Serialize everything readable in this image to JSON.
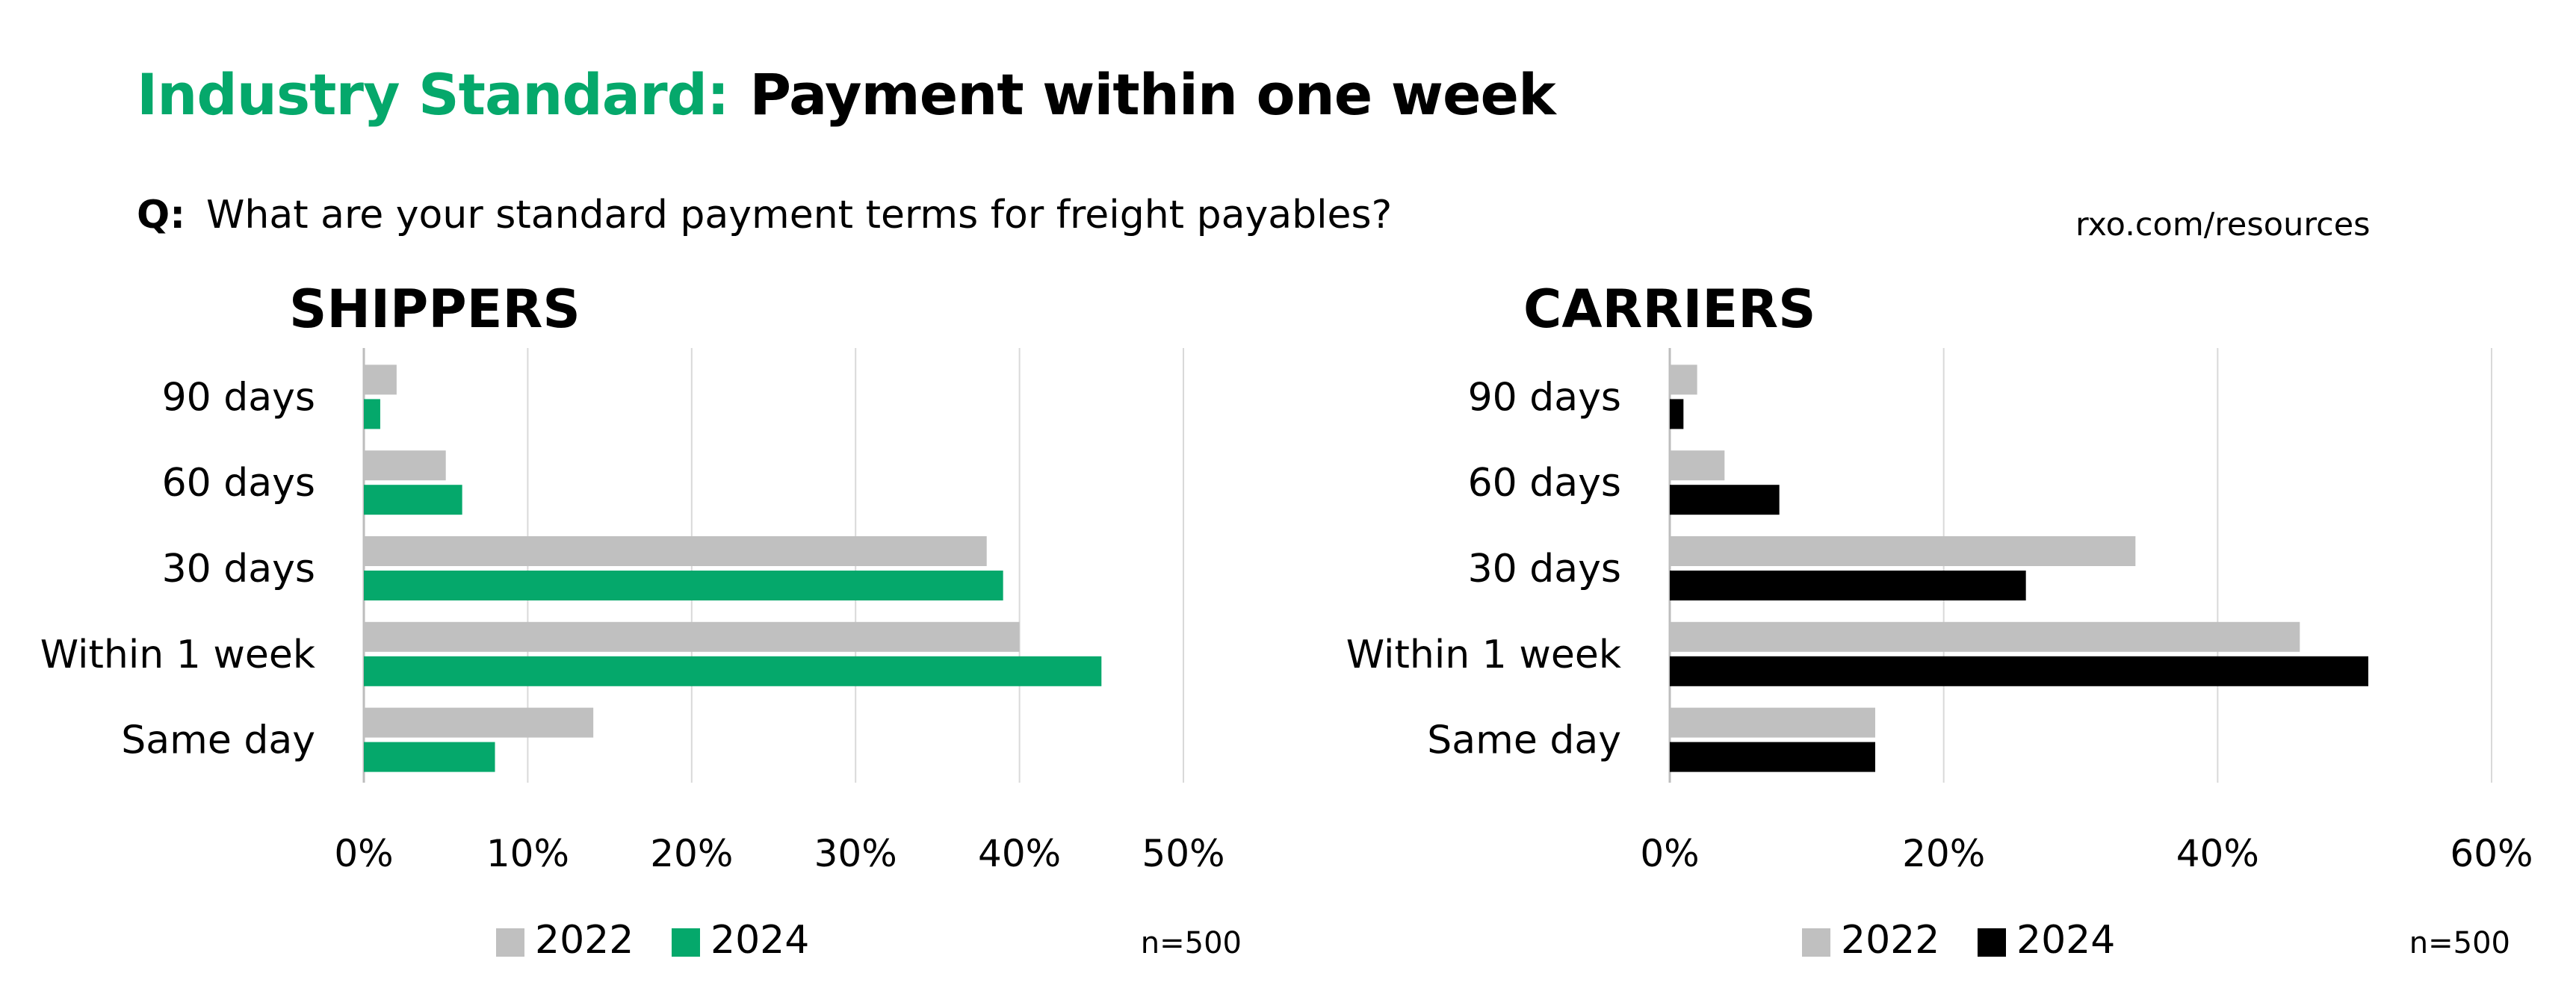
{
  "header": {
    "title_accent": "Industry Standard:",
    "title_rest": "Payment within one week",
    "question_prefix": "Q:",
    "question_text": "What are your standard payment terms for freight payables?",
    "source": "rxo.com/resources"
  },
  "chart_data": [
    {
      "type": "bar",
      "orientation": "horizontal",
      "title": "SHIPPERS",
      "categories": [
        "90 days",
        "60 days",
        "30 days",
        "Within 1 week",
        "Same day"
      ],
      "series": [
        {
          "name": "2022",
          "color": "#c0c0c0",
          "values": [
            2,
            5,
            38,
            40,
            14
          ]
        },
        {
          "name": "2024",
          "color": "#05a86b",
          "values": [
            1,
            6,
            39,
            45,
            8
          ]
        }
      ],
      "xlim": [
        0,
        50
      ],
      "xticks": [
        0,
        10,
        20,
        30,
        40,
        50
      ],
      "tick_suffix": "%",
      "grid": true,
      "legend_position": "bottom",
      "note": "n=500"
    },
    {
      "type": "bar",
      "orientation": "horizontal",
      "title": "CARRIERS",
      "categories": [
        "90 days",
        "60 days",
        "30 days",
        "Within 1 week",
        "Same day"
      ],
      "series": [
        {
          "name": "2022",
          "color": "#c0c0c0",
          "values": [
            2,
            4,
            34,
            46,
            15
          ]
        },
        {
          "name": "2024",
          "color": "#000000",
          "values": [
            1,
            8,
            26,
            51,
            15
          ]
        }
      ],
      "xlim": [
        0,
        60
      ],
      "xticks": [
        0,
        20,
        40,
        60
      ],
      "tick_suffix": "%",
      "grid": true,
      "legend_position": "bottom",
      "note": "n=500"
    }
  ]
}
